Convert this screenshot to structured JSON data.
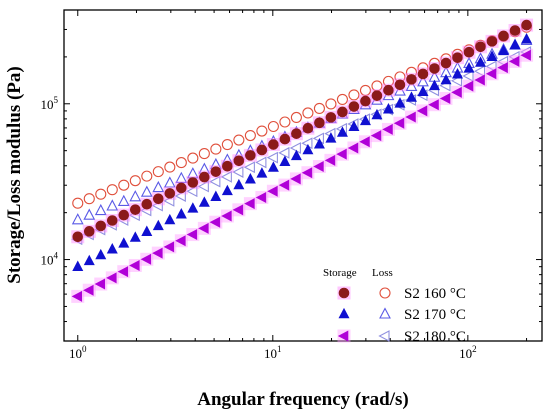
{
  "chart_data": {
    "type": "scatter",
    "title": "",
    "xlabel": "Angular frequency (rad/s)",
    "ylabel": "Storage/Loss modulus (Pa)",
    "xscale": "log",
    "yscale": "log",
    "xlim": [
      0.85,
      240
    ],
    "ylim": [
      3000,
      400000
    ],
    "x_ticks": [
      {
        "value": 1,
        "base": "10",
        "exp": "0"
      },
      {
        "value": 10,
        "base": "10",
        "exp": "1"
      },
      {
        "value": 100,
        "base": "10",
        "exp": "2"
      }
    ],
    "y_ticks": [
      {
        "value": 10000,
        "base": "10",
        "exp": "4"
      },
      {
        "value": 100000,
        "base": "10",
        "exp": "5"
      }
    ],
    "grid": false,
    "legend": {
      "position": "bottom-right",
      "storage_header": "Storage",
      "loss_header": "Loss",
      "rows": [
        "S2 160 °C",
        "S2 170 °C",
        "S2 180 °C"
      ]
    },
    "x_range": {
      "start": 1.0,
      "end": 200.0,
      "count": 40
    },
    "series": [
      {
        "name": "S2 160 °C",
        "kind": "Storage",
        "marker": "circle",
        "filled": true,
        "color": "#8b1a1a",
        "halo": "#ff80ff",
        "y_start": 14000,
        "y_end": 320000
      },
      {
        "name": "S2 160 °C",
        "kind": "Loss",
        "marker": "circle",
        "filled": false,
        "color": "#e0503c",
        "y_start": 23000,
        "y_end": 310000
      },
      {
        "name": "S2 170 °C",
        "kind": "Storage",
        "marker": "triangle-up",
        "filled": true,
        "color": "#1010d0",
        "y_start": 9000,
        "y_end": 260000
      },
      {
        "name": "S2 170 °C",
        "kind": "Loss",
        "marker": "triangle-up",
        "filled": false,
        "color": "#5a5ae6",
        "y_start": 18000,
        "y_end": 255000
      },
      {
        "name": "S2 180 °C",
        "kind": "Storage",
        "marker": "triangle-left",
        "filled": true,
        "color": "#b000d8",
        "halo": "#ff9cff",
        "y_start": 5800,
        "y_end": 205000
      },
      {
        "name": "S2 180 °C",
        "kind": "Loss",
        "marker": "triangle-left",
        "filled": false,
        "color": "#9090e0",
        "y_start": 13500,
        "y_end": 215000
      }
    ]
  }
}
